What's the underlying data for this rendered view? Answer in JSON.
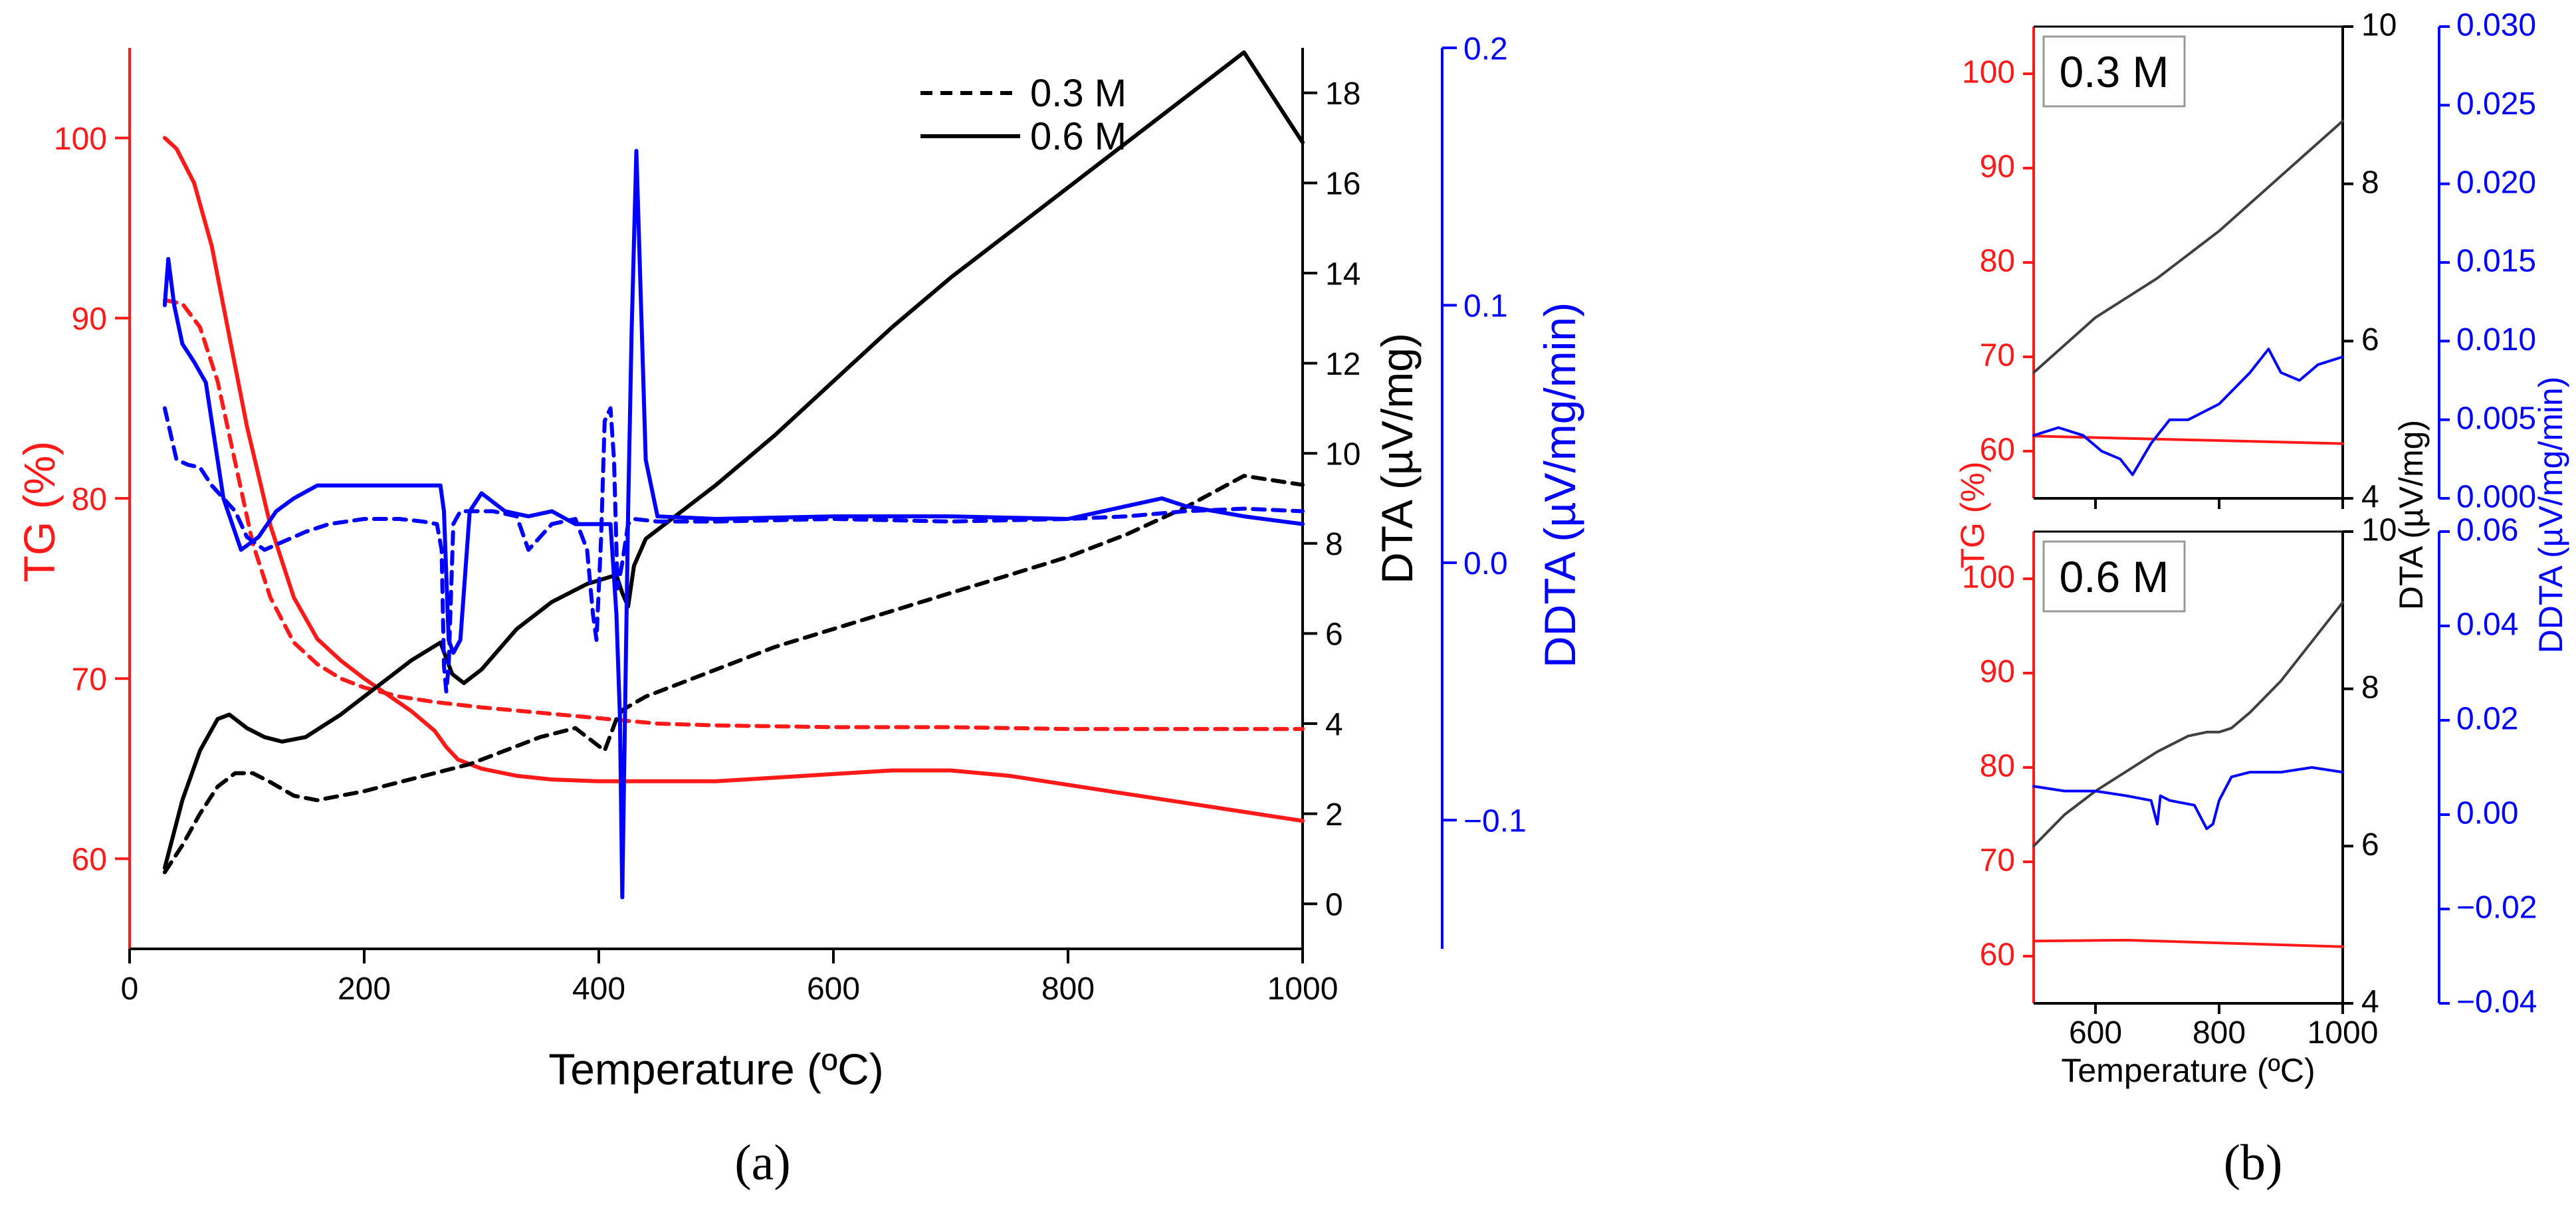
{
  "colors": {
    "tg": "#ff1a1a",
    "dta": "#000000",
    "ddta": "#0000ff",
    "dta_b": "#404040"
  },
  "chart_data": [
    {
      "type": "line",
      "panel": "a",
      "caption": "(a)",
      "xlabel": "Temperature (ºC)",
      "xlim": [
        0,
        1000
      ],
      "xticks": [
        "0",
        "200",
        "400",
        "600",
        "800",
        "1000"
      ],
      "axes": {
        "tg": {
          "label": "TG (%)",
          "lim": [
            55,
            105
          ],
          "ticks": [
            "60",
            "70",
            "80",
            "90",
            "100"
          ]
        },
        "dta": {
          "label": "DTA (µV/mg)",
          "lim": [
            -1,
            19
          ],
          "ticks": [
            "0",
            "2",
            "4",
            "6",
            "8",
            "10",
            "12",
            "14",
            "16",
            "18"
          ]
        },
        "ddta": {
          "label": "DDTA (µV/mg/min)",
          "lim": [
            -0.15,
            0.2
          ],
          "ticks": [
            "−0.1",
            "0.0",
            "0.1",
            "0.2"
          ]
        }
      },
      "legend": [
        {
          "label": "0.3 M",
          "style": "dashed"
        },
        {
          "label": "0.6 M",
          "style": "solid"
        }
      ],
      "series": [
        {
          "name": "TG 0.6 M",
          "axis": "tg",
          "style": "solid",
          "x": [
            30,
            40,
            55,
            70,
            85,
            100,
            120,
            140,
            160,
            180,
            200,
            220,
            240,
            260,
            270,
            280,
            300,
            330,
            360,
            400,
            440,
            500,
            550,
            600,
            650,
            700,
            750,
            800,
            850,
            900,
            950,
            1000
          ],
          "y": [
            100,
            99.4,
            97.5,
            94,
            89,
            84,
            78.5,
            74.5,
            72.2,
            71,
            70,
            69.1,
            68.2,
            67.1,
            66.2,
            65.5,
            65,
            64.6,
            64.4,
            64.3,
            64.3,
            64.3,
            64.5,
            64.7,
            64.9,
            64.9,
            64.6,
            64.1,
            63.6,
            63.1,
            62.6,
            62.1
          ]
        },
        {
          "name": "TG 0.3 M",
          "axis": "tg",
          "style": "dashed",
          "x": [
            30,
            45,
            60,
            75,
            90,
            105,
            120,
            140,
            160,
            180,
            200,
            230,
            260,
            300,
            350,
            400,
            450,
            500,
            600,
            700,
            800,
            900,
            1000
          ],
          "y": [
            91,
            90.8,
            89.5,
            86.5,
            82,
            77.5,
            74.5,
            72,
            70.8,
            70,
            69.5,
            69,
            68.7,
            68.4,
            68.1,
            67.8,
            67.5,
            67.4,
            67.3,
            67.3,
            67.2,
            67.2,
            67.2
          ]
        },
        {
          "name": "DTA 0.6 M",
          "axis": "dta",
          "style": "solid",
          "x": [
            30,
            45,
            60,
            75,
            85,
            100,
            115,
            130,
            150,
            180,
            210,
            240,
            265,
            275,
            285,
            300,
            330,
            360,
            390,
            415,
            420,
            425,
            430,
            440,
            460,
            500,
            550,
            600,
            650,
            700,
            750,
            800,
            850,
            900,
            950,
            1000
          ],
          "y": [
            0.8,
            2.3,
            3.4,
            4.1,
            4.2,
            3.9,
            3.7,
            3.6,
            3.7,
            4.2,
            4.8,
            5.4,
            5.8,
            5.1,
            4.9,
            5.2,
            6.1,
            6.7,
            7.1,
            7.3,
            6.9,
            6.6,
            7.5,
            8.1,
            8.5,
            9.3,
            10.4,
            11.6,
            12.8,
            13.9,
            14.9,
            15.9,
            16.9,
            17.9,
            18.9,
            16.9
          ]
        },
        {
          "name": "DTA 0.3 M",
          "axis": "dta",
          "style": "dashed",
          "x": [
            30,
            45,
            60,
            75,
            90,
            105,
            120,
            140,
            160,
            180,
            200,
            230,
            260,
            290,
            320,
            350,
            380,
            395,
            405,
            415,
            420,
            440,
            470,
            500,
            550,
            600,
            650,
            700,
            750,
            800,
            850,
            900,
            950,
            1000
          ],
          "y": [
            0.7,
            1.3,
            2,
            2.6,
            2.9,
            2.9,
            2.7,
            2.4,
            2.3,
            2.4,
            2.5,
            2.7,
            2.9,
            3.1,
            3.4,
            3.7,
            3.9,
            3.6,
            3.4,
            4.1,
            4.3,
            4.6,
            4.9,
            5.2,
            5.7,
            6.1,
            6.5,
            6.9,
            7.3,
            7.7,
            8.2,
            8.8,
            9.5,
            9.3
          ]
        },
        {
          "name": "DDTA 0.6 M",
          "axis": "ddta",
          "style": "solid",
          "x": [
            30,
            33,
            38,
            45,
            55,
            65,
            80,
            95,
            110,
            125,
            140,
            160,
            180,
            200,
            220,
            240,
            260,
            265,
            268,
            272,
            276,
            282,
            290,
            300,
            320,
            340,
            360,
            380,
            400,
            410,
            415,
            418,
            420,
            422,
            425,
            428,
            432,
            440,
            450,
            500,
            600,
            700,
            800,
            850,
            880,
            900,
            950,
            1000
          ],
          "y": [
            0.1,
            0.118,
            0.1,
            0.085,
            0.078,
            0.07,
            0.025,
            0.005,
            0.01,
            0.02,
            0.025,
            0.03,
            0.03,
            0.03,
            0.03,
            0.03,
            0.03,
            0.03,
            0.02,
            -0.03,
            -0.035,
            -0.03,
            0.02,
            0.027,
            0.02,
            0.018,
            0.02,
            0.015,
            0.015,
            0.015,
            -0.02,
            -0.06,
            -0.13,
            -0.07,
            0.02,
            0.09,
            0.16,
            0.04,
            0.018,
            0.017,
            0.018,
            0.018,
            0.017,
            0.022,
            0.025,
            0.022,
            0.018,
            0.015
          ]
        },
        {
          "name": "DDTA 0.3 M",
          "axis": "ddta",
          "style": "dashed",
          "x": [
            30,
            40,
            50,
            60,
            70,
            80,
            90,
            100,
            115,
            130,
            150,
            170,
            200,
            230,
            250,
            262,
            266,
            268,
            270,
            272,
            276,
            282,
            290,
            310,
            330,
            340,
            360,
            380,
            390,
            395,
            398,
            402,
            405,
            410,
            413,
            416,
            420,
            425,
            430,
            450,
            500,
            600,
            700,
            800,
            850,
            900,
            950,
            1000
          ],
          "y": [
            0.06,
            0.04,
            0.038,
            0.037,
            0.03,
            0.025,
            0.02,
            0.01,
            0.005,
            0.008,
            0.012,
            0.015,
            0.017,
            0.017,
            0.016,
            0.015,
            0.005,
            -0.04,
            -0.05,
            -0.04,
            0.015,
            0.02,
            0.02,
            0.02,
            0.018,
            0.005,
            0.015,
            0.017,
            0.005,
            -0.02,
            -0.03,
            0.01,
            0.055,
            0.06,
            0.04,
            -0.01,
            0.0,
            0.015,
            0.017,
            0.016,
            0.016,
            0.017,
            0.016,
            0.017,
            0.018,
            0.02,
            0.021,
            0.02
          ]
        }
      ]
    },
    {
      "type": "line",
      "panel": "b-top",
      "caption": "(b)",
      "label": "0.3 M",
      "xlabel": "Temperature (ºC)",
      "xlim": [
        500,
        1000
      ],
      "xticks": [
        "600",
        "800",
        "1000"
      ],
      "axes": {
        "tg": {
          "label": "TG (%)",
          "lim": [
            55,
            105
          ],
          "ticks": [
            "60",
            "70",
            "80",
            "90",
            "100"
          ]
        },
        "dta": {
          "label": "DTA (µV/mg)",
          "lim": [
            4,
            10
          ],
          "ticks": [
            "4",
            "6",
            "8",
            "10"
          ]
        },
        "ddta": {
          "label": "DDTA (µV/mg/min)",
          "lim": [
            0,
            0.03
          ],
          "ticks": [
            "0.000",
            "0.005",
            "0.010",
            "0.015",
            "0.020",
            "0.025",
            "0.030"
          ]
        }
      },
      "series": [
        {
          "name": "TG",
          "axis": "tg",
          "x": [
            500,
            1000
          ],
          "y": [
            61.6,
            60.8
          ]
        },
        {
          "name": "DTA",
          "axis": "dta",
          "x": [
            500,
            550,
            600,
            650,
            700,
            750,
            800,
            850,
            900,
            950,
            1000
          ],
          "y": [
            5.6,
            5.95,
            6.3,
            6.55,
            6.8,
            7.1,
            7.4,
            7.75,
            8.1,
            8.45,
            8.8
          ]
        },
        {
          "name": "DDTA",
          "axis": "ddta",
          "x": [
            500,
            540,
            580,
            610,
            640,
            660,
            690,
            720,
            750,
            800,
            850,
            880,
            900,
            930,
            960,
            1000
          ],
          "y": [
            0.004,
            0.0045,
            0.004,
            0.003,
            0.0025,
            0.0015,
            0.0035,
            0.005,
            0.005,
            0.006,
            0.008,
            0.0095,
            0.008,
            0.0075,
            0.0085,
            0.009
          ]
        }
      ]
    },
    {
      "type": "line",
      "panel": "b-bottom",
      "label": "0.6 M",
      "xlabel": "Temperature (ºC)",
      "xlim": [
        500,
        1000
      ],
      "xticks": [
        "600",
        "800",
        "1000"
      ],
      "axes": {
        "tg": {
          "label": "TG (%)",
          "lim": [
            55,
            105
          ],
          "ticks": [
            "60",
            "70",
            "80",
            "90",
            "100"
          ]
        },
        "dta": {
          "label": "DTA (µV/mg)",
          "lim": [
            4,
            10
          ],
          "ticks": [
            "4",
            "6",
            "8",
            "10"
          ]
        },
        "ddta": {
          "label": "DDTA (µV/mg/min)",
          "lim": [
            -0.04,
            0.06
          ],
          "ticks": [
            "−0.04",
            "−0.02",
            "0.00",
            "0.02",
            "0.04",
            "0.06"
          ]
        }
      },
      "series": [
        {
          "name": "TG",
          "axis": "tg",
          "x": [
            500,
            650,
            1000
          ],
          "y": [
            61.6,
            61.7,
            61.0
          ]
        },
        {
          "name": "DTA",
          "axis": "dta",
          "x": [
            500,
            550,
            600,
            650,
            700,
            750,
            780,
            800,
            820,
            850,
            900,
            950,
            1000
          ],
          "y": [
            6.0,
            6.4,
            6.7,
            6.95,
            7.2,
            7.4,
            7.45,
            7.45,
            7.5,
            7.7,
            8.1,
            8.6,
            9.1
          ]
        },
        {
          "name": "DDTA",
          "axis": "ddta",
          "x": [
            500,
            550,
            600,
            650,
            690,
            700,
            705,
            720,
            760,
            780,
            790,
            800,
            820,
            850,
            900,
            950,
            1000
          ],
          "y": [
            0.006,
            0.005,
            0.005,
            0.004,
            0.003,
            -0.002,
            0.004,
            0.003,
            0.002,
            -0.003,
            -0.002,
            0.003,
            0.008,
            0.009,
            0.009,
            0.01,
            0.009
          ]
        }
      ]
    }
  ]
}
